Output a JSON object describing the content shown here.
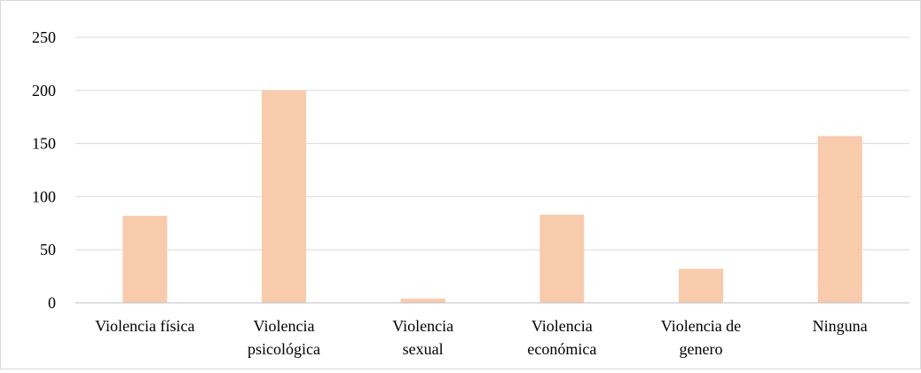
{
  "chart_data": {
    "type": "bar",
    "categories": [
      [
        "Violencia física"
      ],
      [
        "Violencia",
        "psicológica"
      ],
      [
        "Violencia",
        "sexual"
      ],
      [
        "Violencia",
        "económica"
      ],
      [
        "Violencia de",
        "genero"
      ],
      [
        "Ninguna"
      ]
    ],
    "values": [
      82,
      200,
      4,
      83,
      32,
      157
    ],
    "ylim": [
      0,
      250
    ],
    "yticks": [
      "0",
      "50",
      "100",
      "150",
      "200",
      "250"
    ],
    "title": "",
    "xlabel": "",
    "ylabel": "",
    "grid": true,
    "legend": "none",
    "colors": {
      "bar": "#F8CBAD",
      "grid": "#d9d9d9",
      "axis": "#bfbfbf"
    }
  }
}
